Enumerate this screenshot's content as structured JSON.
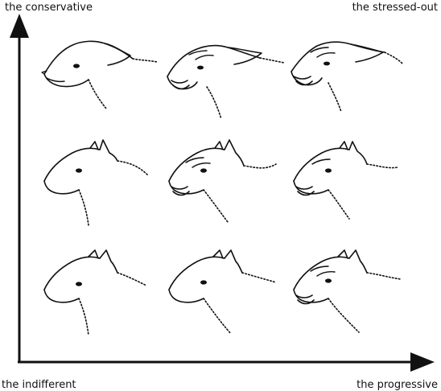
{
  "labels": {
    "top_left": "the conservative",
    "top_right": "the stressed-out",
    "bottom_left": "the indifferent",
    "bottom_right": "the progressive"
  },
  "drawing": {
    "subject": "wolf heads",
    "grid_rows": 3,
    "grid_cols": 3,
    "ink_color": "#111111",
    "arrow_up": "vertical axis arrow",
    "arrow_right": "horizontal axis arrow"
  }
}
